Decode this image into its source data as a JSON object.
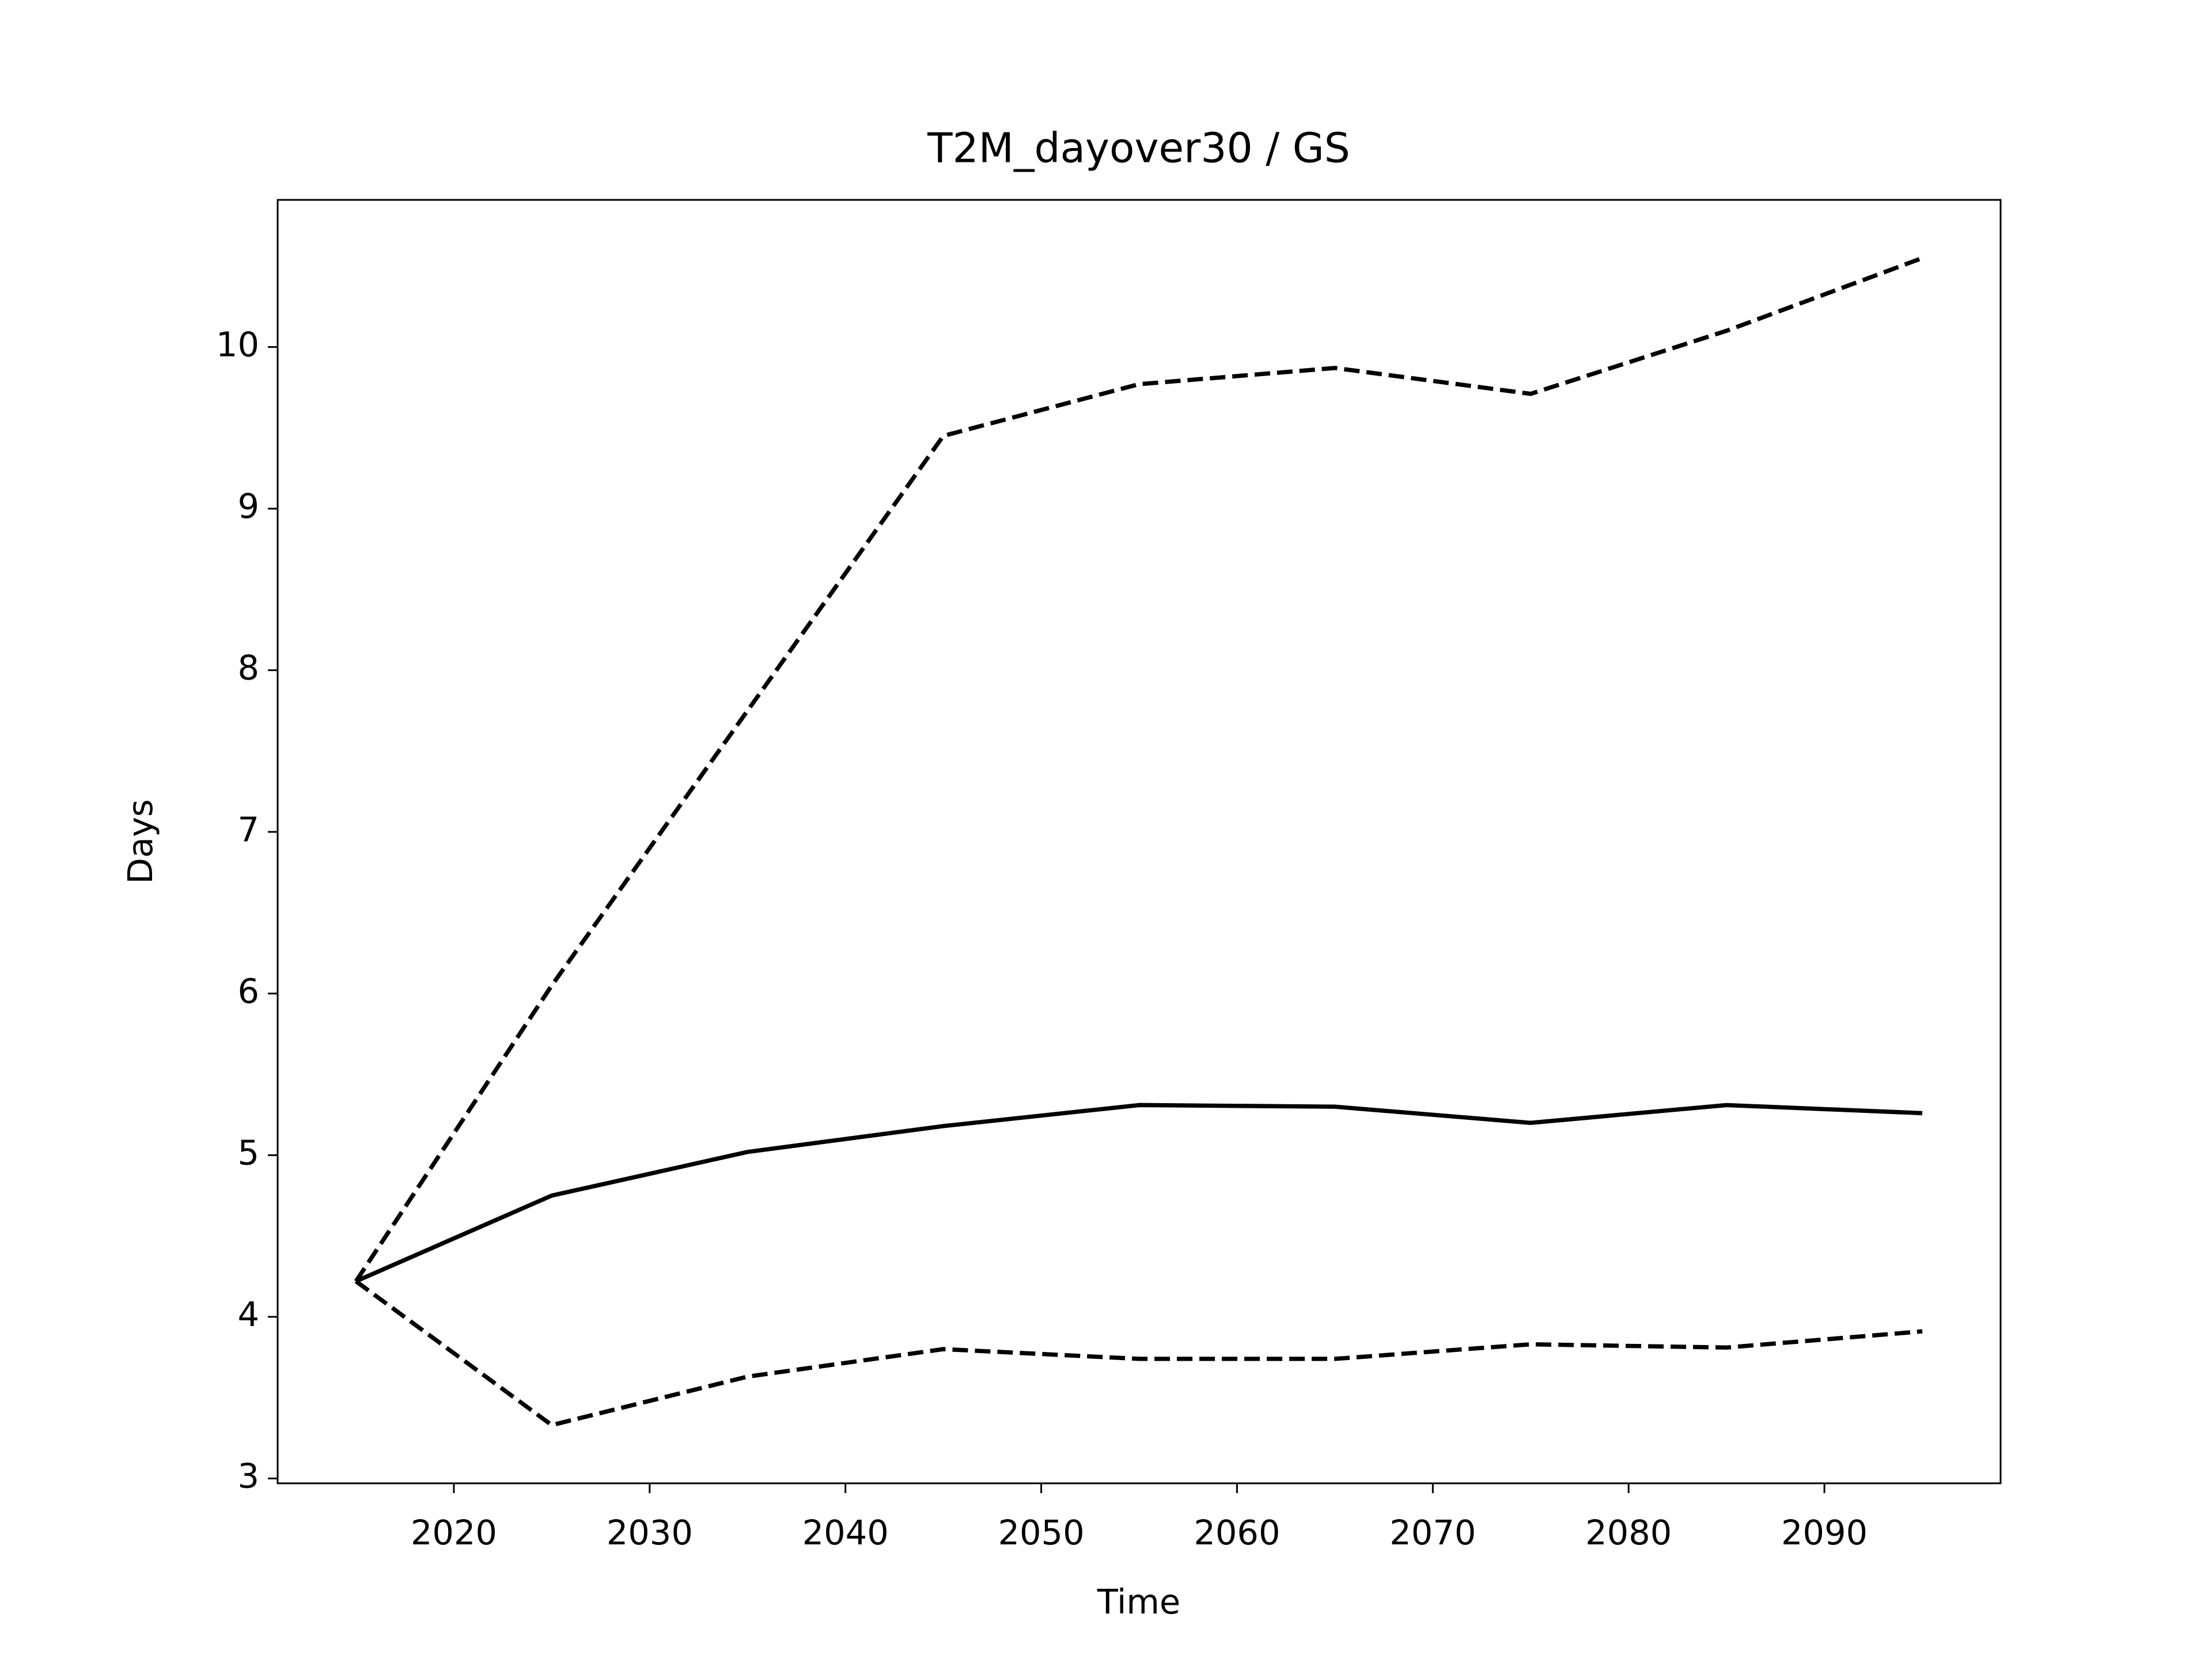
{
  "chart_data": {
    "type": "line",
    "title": "T2M_dayover30 / GS",
    "x_label": "Time",
    "y_label": "Days",
    "x": [
      2015,
      2025,
      2035,
      2045,
      2055,
      2065,
      2075,
      2085,
      2095
    ],
    "series": [
      {
        "color": "#000000",
        "linestyle": "solid",
        "values": [
          4.22,
          4.75,
          5.02,
          5.18,
          5.31,
          5.3,
          5.2,
          5.31,
          5.26
        ]
      },
      {
        "color": "#000000",
        "linestyle": "dashed",
        "values": [
          4.22,
          6.05,
          7.75,
          9.45,
          9.77,
          9.87,
          9.71,
          10.1,
          10.55
        ]
      },
      {
        "color": "#000000",
        "linestyle": "dashed",
        "values": [
          4.22,
          3.33,
          3.63,
          3.8,
          3.74,
          3.74,
          3.83,
          3.81,
          3.91
        ]
      }
    ],
    "xlim": [
      2011,
      2099
    ],
    "xticks": [
      2020,
      2030,
      2040,
      2050,
      2060,
      2070,
      2080,
      2090
    ],
    "ylim": [
      2.97,
      10.91
    ],
    "yticks": [
      3,
      4,
      5,
      6,
      7,
      8,
      9,
      10
    ],
    "grid": false
  }
}
